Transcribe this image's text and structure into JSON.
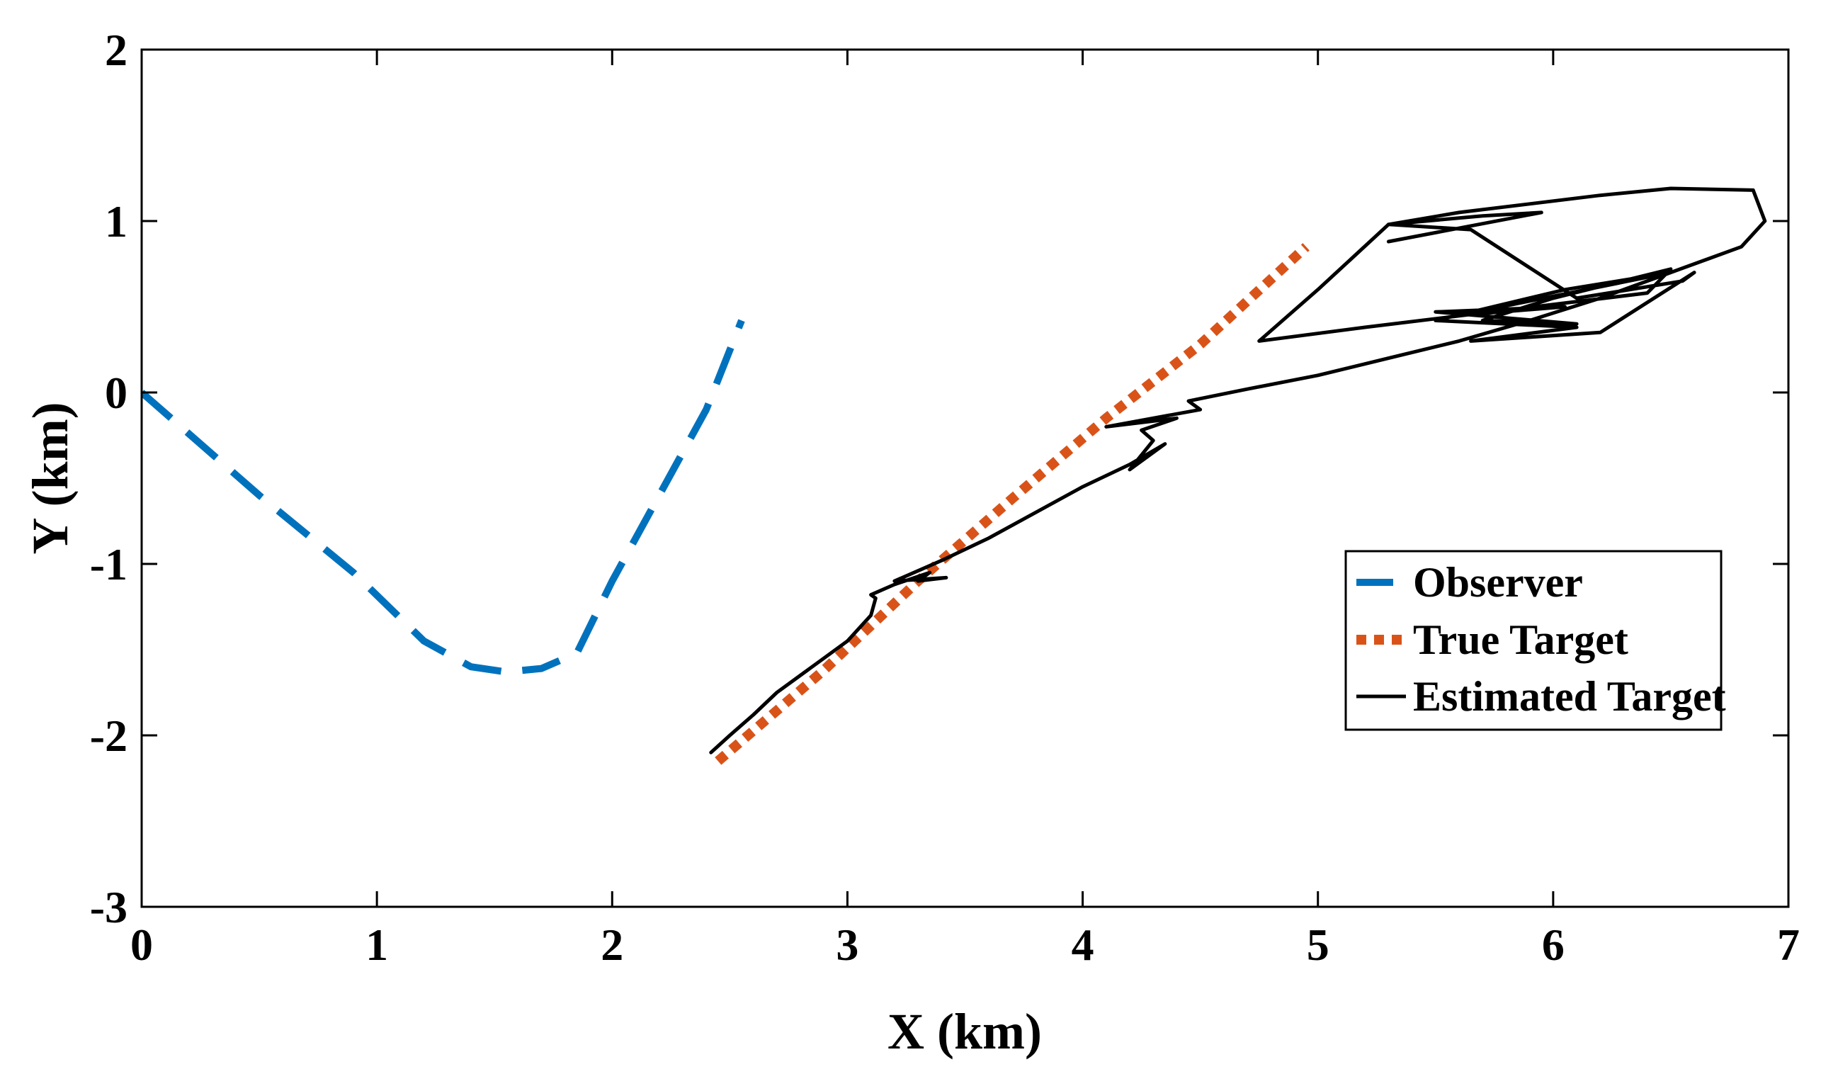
{
  "chart_data": {
    "type": "line",
    "title": "",
    "xlabel": "X (km)",
    "ylabel": "Y (km)",
    "xlim": [
      0,
      7
    ],
    "ylim": [
      -3,
      2
    ],
    "xticks": [
      0,
      1,
      2,
      3,
      4,
      5,
      6,
      7
    ],
    "yticks": [
      -3,
      -2,
      -1,
      0,
      1,
      2
    ],
    "grid": false,
    "legend_position": "inside-right",
    "series": [
      {
        "name": "Observer",
        "color": "#0072BD",
        "style": "dashed",
        "x": [
          0.0,
          0.5,
          0.9,
          1.2,
          1.4,
          1.55,
          1.7,
          1.85,
          2.0,
          2.2,
          2.4,
          2.55
        ],
        "y": [
          0.0,
          -0.6,
          -1.05,
          -1.45,
          -1.6,
          -1.63,
          -1.61,
          -1.52,
          -1.1,
          -0.6,
          -0.1,
          0.42
        ]
      },
      {
        "name": "True Target",
        "color": "#D95319",
        "style": "dotted",
        "x": [
          2.45,
          2.9,
          3.3,
          3.7,
          4.1,
          4.5,
          4.95
        ],
        "y": [
          -2.15,
          -1.62,
          -1.1,
          -0.62,
          -0.15,
          0.28,
          0.85
        ]
      },
      {
        "name": "Estimated Target",
        "color": "#000000",
        "style": "solid",
        "x": [
          2.42,
          2.5,
          2.6,
          2.7,
          2.8,
          2.9,
          3.0,
          3.1,
          3.12,
          3.1,
          3.2,
          3.35,
          3.3,
          3.42,
          3.2,
          3.4,
          3.6,
          3.8,
          4.0,
          4.2,
          4.35,
          4.2,
          4.3,
          4.25,
          4.4,
          4.1,
          4.5,
          4.45,
          4.7,
          5.0,
          5.3,
          5.6,
          5.9,
          6.2,
          6.5,
          6.8,
          6.9,
          6.85,
          6.5,
          6.2,
          5.9,
          5.6,
          5.3,
          5.0,
          4.75,
          5.2,
          5.8,
          6.4,
          6.5,
          6.0,
          5.7,
          6.1,
          5.5,
          6.05,
          5.6,
          6.5,
          6.05,
          5.5,
          6.1,
          5.65,
          6.2,
          6.6,
          6.55,
          6.1,
          5.65,
          5.3,
          5.7,
          5.95,
          5.3
        ],
        "y": [
          -2.1,
          -2.0,
          -1.88,
          -1.75,
          -1.65,
          -1.55,
          -1.45,
          -1.3,
          -1.2,
          -1.18,
          -1.12,
          -1.05,
          -1.1,
          -1.08,
          -1.1,
          -0.98,
          -0.85,
          -0.7,
          -0.55,
          -0.42,
          -0.3,
          -0.45,
          -0.28,
          -0.22,
          -0.15,
          -0.2,
          -0.1,
          -0.05,
          0.02,
          0.1,
          0.2,
          0.3,
          0.42,
          0.55,
          0.7,
          0.85,
          1.0,
          1.18,
          1.19,
          1.15,
          1.1,
          1.05,
          0.98,
          0.6,
          0.3,
          0.38,
          0.48,
          0.58,
          0.72,
          0.55,
          0.42,
          0.4,
          0.47,
          0.5,
          0.45,
          0.7,
          0.6,
          0.42,
          0.38,
          0.3,
          0.35,
          0.7,
          0.65,
          0.55,
          0.95,
          0.98,
          1.03,
          1.05,
          0.88
        ]
      }
    ]
  }
}
